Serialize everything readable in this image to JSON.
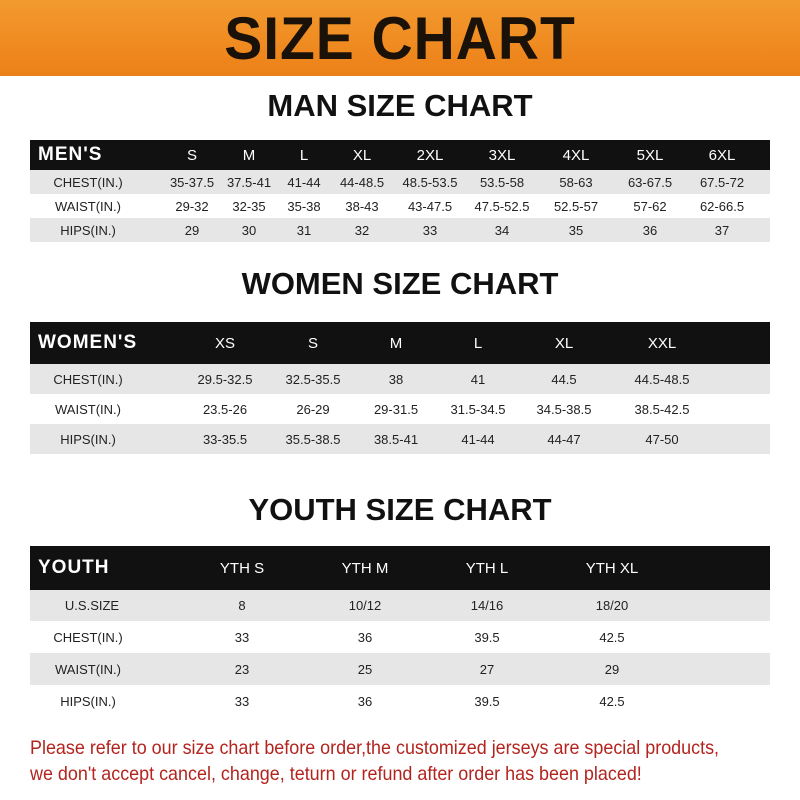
{
  "banner": {
    "title": "SIZE CHART"
  },
  "colors": {
    "banner": "#ee8a22",
    "header_row": "#111111",
    "notice": "#b3241e"
  },
  "tables": [
    {
      "title": "MAN SIZE CHART",
      "header": [
        "MEN'S",
        "S",
        "M",
        "L",
        "XL",
        "2XL",
        "3XL",
        "4XL",
        "5XL",
        "6XL"
      ],
      "rows": [
        [
          "CHEST(IN.)",
          "35-37.5",
          "37.5-41",
          "41-44",
          "44-48.5",
          "48.5-53.5",
          "53.5-58",
          "58-63",
          "63-67.5",
          "67.5-72"
        ],
        [
          "WAIST(IN.)",
          "29-32",
          "32-35",
          "35-38",
          "38-43",
          "43-47.5",
          "47.5-52.5",
          "52.5-57",
          "57-62",
          "62-66.5"
        ],
        [
          "HIPS(IN.)",
          "29",
          "30",
          "31",
          "32",
          "33",
          "34",
          "35",
          "36",
          "37"
        ]
      ]
    },
    {
      "title": "WOMEN SIZE CHART",
      "header": [
        "WOMEN'S",
        "XS",
        "S",
        "M",
        "L",
        "XL",
        "XXL"
      ],
      "rows": [
        [
          "CHEST(IN.)",
          "29.5-32.5",
          "32.5-35.5",
          "38",
          "41",
          "44.5",
          "44.5-48.5"
        ],
        [
          "WAIST(IN.)",
          "23.5-26",
          "26-29",
          "29-31.5",
          "31.5-34.5",
          "34.5-38.5",
          "38.5-42.5"
        ],
        [
          "HIPS(IN.)",
          "33-35.5",
          "35.5-38.5",
          "38.5-41",
          "41-44",
          "44-47",
          "47-50"
        ]
      ]
    },
    {
      "title": "YOUTH SIZE CHART",
      "header": [
        "YOUTH",
        "YTH S",
        "YTH M",
        "YTH L",
        "YTH XL"
      ],
      "rows": [
        [
          "U.S.SIZE",
          "8",
          "10/12",
          "14/16",
          "18/20"
        ],
        [
          "CHEST(IN.)",
          "33",
          "36",
          "39.5",
          "42.5"
        ],
        [
          "WAIST(IN.)",
          "23",
          "25",
          "27",
          "29"
        ],
        [
          "HIPS(IN.)",
          "33",
          "36",
          "39.5",
          "42.5"
        ]
      ]
    }
  ],
  "notice": {
    "line1": "Please refer to our size chart before order,the customized jerseys are special products,",
    "line2": "we don't accept cancel, change, teturn or refund after order has been placed!"
  }
}
